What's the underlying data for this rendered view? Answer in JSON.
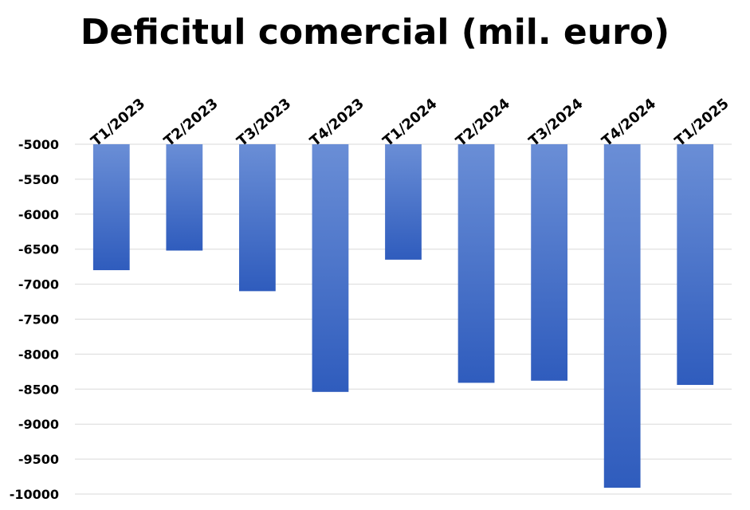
{
  "chart_data": {
    "type": "bar",
    "title": "Deficitul comercial (mil. euro)",
    "xlabel": "",
    "ylabel": "",
    "categories": [
      "T1/2023",
      "T2/2023",
      "T3/2023",
      "T4/2023",
      "T1/2024",
      "T2/2024",
      "T3/2024",
      "T4/2024",
      "T1/2025"
    ],
    "values": [
      -6800,
      -6520,
      -7100,
      -8540,
      -6650,
      -8410,
      -8380,
      -9910,
      -8440
    ],
    "ylim": [
      -10000,
      -5000
    ],
    "yticks": [
      -5000,
      -5500,
      -6000,
      -6500,
      -7000,
      -7500,
      -8000,
      -8500,
      -9000,
      -9500,
      -10000
    ],
    "ytick_labels": [
      "-5000",
      "-5500",
      "-6000",
      "-6500",
      "-7000",
      "-7500",
      "-8000",
      "-8500",
      "-9000",
      "-9500",
      "-10000"
    ],
    "category_axis_position": "top",
    "category_label_rotation": "diagonal",
    "grid": true,
    "legend": false,
    "colors": {
      "bar_top": "#6a8ed6",
      "bar_bottom": "#2f5cbd",
      "grid": "#d9d9d9",
      "text": "#000000"
    }
  }
}
